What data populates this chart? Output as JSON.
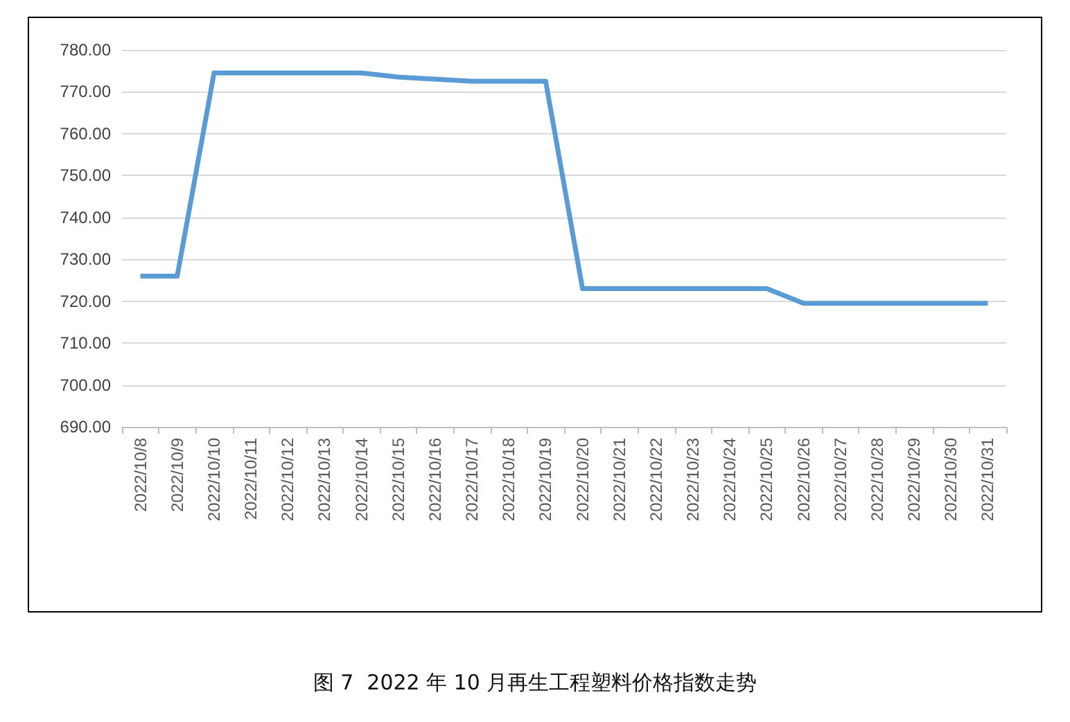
{
  "chart_data": {
    "type": "line",
    "title": "图 7  2022 年 10 月再生工程塑料价格指数走势",
    "categories": [
      "2022/10/8",
      "2022/10/9",
      "2022/10/10",
      "2022/10/11",
      "2022/10/12",
      "2022/10/13",
      "2022/10/14",
      "2022/10/15",
      "2022/10/16",
      "2022/10/17",
      "2022/10/18",
      "2022/10/19",
      "2022/10/20",
      "2022/10/21",
      "2022/10/22",
      "2022/10/23",
      "2022/10/24",
      "2022/10/25",
      "2022/10/26",
      "2022/10/27",
      "2022/10/28",
      "2022/10/29",
      "2022/10/30",
      "2022/10/31"
    ],
    "series": [
      {
        "color": "#5b9bd5",
        "values": [
          726,
          726,
          774.5,
          774.5,
          774.5,
          774.5,
          774.5,
          773.5,
          773,
          772.5,
          772.5,
          772.5,
          723,
          723,
          723,
          723,
          723,
          723,
          719.5,
          719.5,
          719.5,
          719.5,
          719.5,
          719.5
        ]
      }
    ],
    "ylim": [
      690,
      780
    ],
    "yticks": [
      {
        "value": 690,
        "label": "690.00"
      },
      {
        "value": 700,
        "label": "700.00"
      },
      {
        "value": 710,
        "label": "710.00"
      },
      {
        "value": 720,
        "label": "720.00"
      },
      {
        "value": 730,
        "label": "730.00"
      },
      {
        "value": 740,
        "label": "740.00"
      },
      {
        "value": 750,
        "label": "750.00"
      },
      {
        "value": 760,
        "label": "760.00"
      },
      {
        "value": 770,
        "label": "770.00"
      },
      {
        "value": 780,
        "label": "780.00"
      }
    ],
    "grid": "y",
    "marker": "none",
    "line_style": "solid"
  }
}
